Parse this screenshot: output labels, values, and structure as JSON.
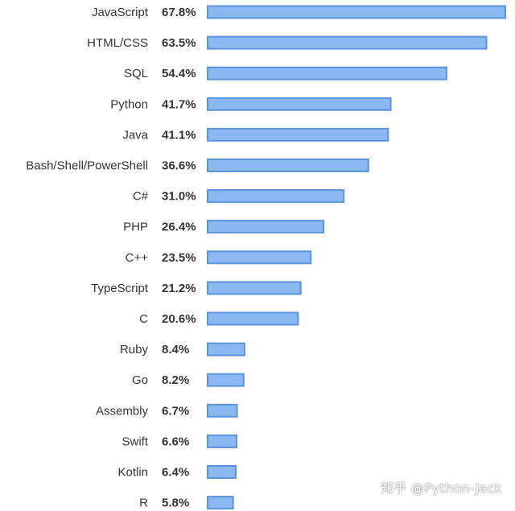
{
  "chart_data": {
    "type": "bar",
    "orientation": "horizontal",
    "categories": [
      "JavaScript",
      "HTML/CSS",
      "SQL",
      "Python",
      "Java",
      "Bash/Shell/PowerShell",
      "C#",
      "PHP",
      "C++",
      "TypeScript",
      "C",
      "Ruby",
      "Go",
      "Assembly",
      "Swift",
      "Kotlin",
      "R"
    ],
    "values": [
      67.8,
      63.5,
      54.4,
      41.7,
      41.1,
      36.6,
      31.0,
      26.4,
      23.5,
      21.2,
      20.6,
      8.4,
      8.2,
      6.7,
      6.6,
      6.4,
      5.8
    ],
    "value_labels": [
      "67.8%",
      "63.5%",
      "54.4%",
      "41.7%",
      "41.1%",
      "36.6%",
      "31.0%",
      "26.4%",
      "23.5%",
      "21.2%",
      "20.6%",
      "8.4%",
      "8.2%",
      "6.7%",
      "6.6%",
      "6.4%",
      "5.8%"
    ],
    "title": "",
    "xlabel": "",
    "ylabel": "",
    "grid": false,
    "legend": "none",
    "bar_color": "#8ab8f0",
    "bar_border_color": "#5a93dc"
  },
  "watermark": {
    "text": "知乎 @Python-Jack"
  }
}
